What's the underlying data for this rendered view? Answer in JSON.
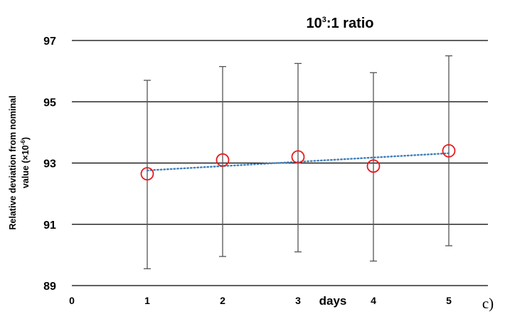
{
  "chart_data": {
    "type": "scatter",
    "title": {
      "base": "10",
      "sup": "3",
      "rest": ":1 ratio"
    },
    "ylabel": {
      "line1": "Relative deviation from nominal",
      "line2_prefix": "value  (×10",
      "line2_sup": "-6",
      "line2_suffix": ")"
    },
    "xlabel": "days",
    "panel_label": "c)",
    "xlim": [
      0,
      5.5
    ],
    "ylim": [
      89,
      97
    ],
    "x_ticks": [
      0,
      1,
      2,
      3,
      4,
      5
    ],
    "y_ticks": [
      89,
      91,
      93,
      95,
      97
    ],
    "grid_y": true,
    "points": [
      {
        "x": 1,
        "y": 92.65,
        "err_low": 89.55,
        "err_high": 95.7
      },
      {
        "x": 2,
        "y": 93.1,
        "err_low": 89.95,
        "err_high": 96.15
      },
      {
        "x": 3,
        "y": 93.2,
        "err_low": 90.1,
        "err_high": 96.25
      },
      {
        "x": 4,
        "y": 92.9,
        "err_low": 89.8,
        "err_high": 95.95
      },
      {
        "x": 5,
        "y": 93.4,
        "err_low": 90.3,
        "err_high": 96.5
      }
    ],
    "trendline": {
      "type": "linear",
      "style": "dotted",
      "x": [
        1,
        5
      ],
      "y": [
        92.76,
        93.32
      ]
    },
    "colors": {
      "marker": "#e8191d",
      "trendline": "#3f7fba",
      "errorbar": "#555555",
      "grid": "#000000"
    }
  }
}
